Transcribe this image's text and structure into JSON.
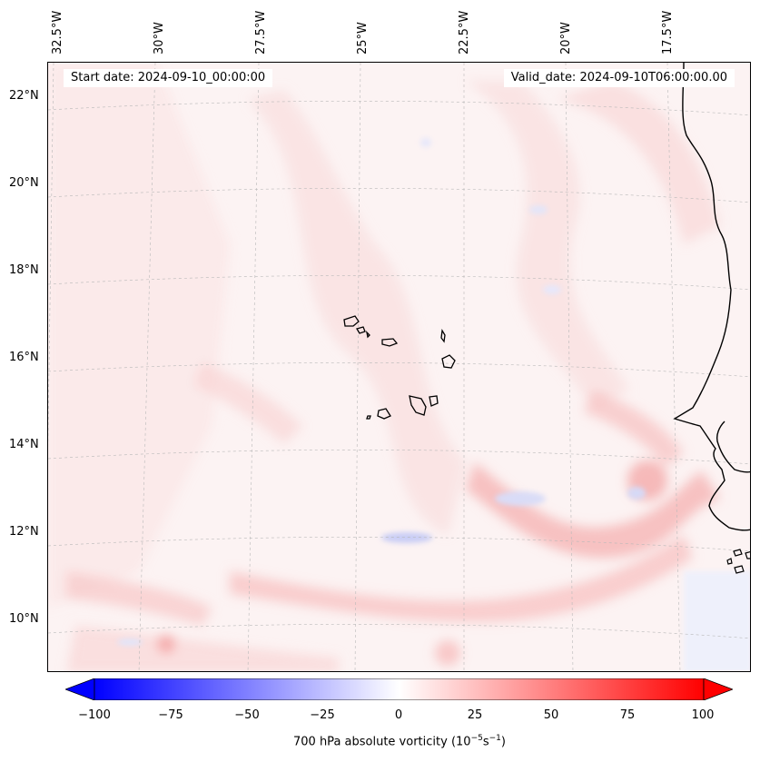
{
  "header": {
    "start_date": "Start date: 2024-09-10_00:00:00",
    "valid_date": "Valid_date: 2024-09-10T06:00:00.00"
  },
  "axes": {
    "lon_labels": [
      "32.5°W",
      "30°W",
      "27.5°W",
      "25°W",
      "22.5°W",
      "20°W",
      "17.5°W"
    ],
    "lat_labels": [
      "22°N",
      "20°N",
      "18°N",
      "16°N",
      "14°N",
      "12°N",
      "10°N"
    ]
  },
  "colorbar": {
    "ticks": [
      "−100",
      "−75",
      "−50",
      "−25",
      "0",
      "25",
      "50",
      "75",
      "100"
    ],
    "label_prefix": "700 hPa absolute vorticity (10",
    "label_exp1": "−5",
    "label_mid": "s",
    "label_exp2": "−1",
    "label_suffix": ")",
    "range": [
      -100,
      100
    ],
    "negative_color": "#0000ff",
    "positive_color": "#ff0000",
    "neutral_color": "#ffffff"
  }
}
